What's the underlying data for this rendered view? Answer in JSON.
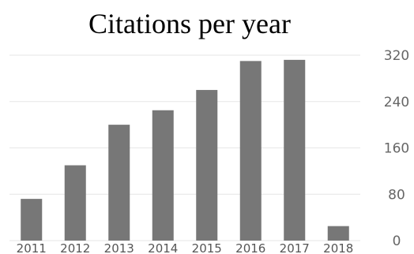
{
  "chart_data": {
    "type": "bar",
    "title": "Citations per year",
    "categories": [
      "2011",
      "2012",
      "2013",
      "2014",
      "2015",
      "2016",
      "2017",
      "2018"
    ],
    "values": [
      72,
      130,
      200,
      225,
      260,
      310,
      312,
      25
    ],
    "ylim": [
      0,
      320
    ],
    "yticks": [
      "320",
      "240",
      "160",
      "80",
      "0"
    ],
    "ytick_values": [
      320,
      240,
      160,
      80,
      0
    ],
    "y_axis_side": "right",
    "grid": true,
    "bar_color": "#777777",
    "grid_color": "#e6e6e6"
  }
}
